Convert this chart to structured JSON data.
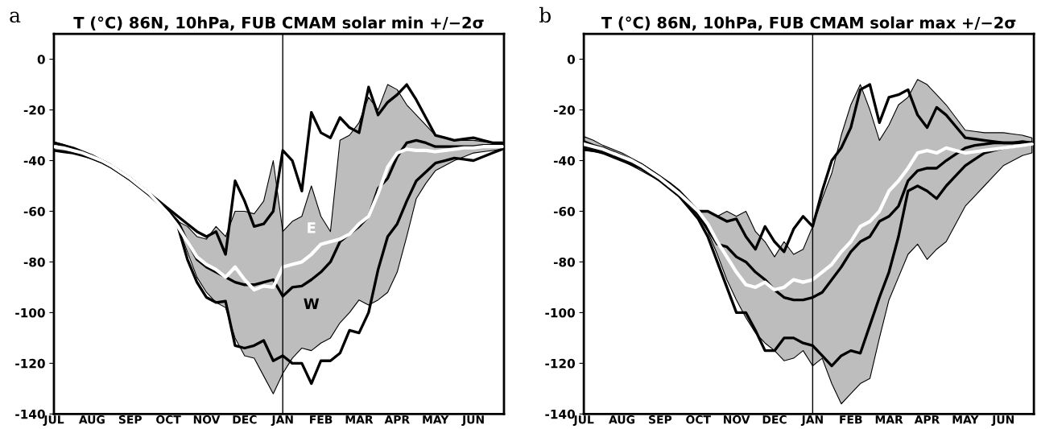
{
  "chart_data": [
    {
      "type": "line",
      "title": "T (°C) 86N, 10hPa, FUB CMAM solar min +/−2σ",
      "annotations": [
        "a"
      ],
      "categories": [
        "JUL",
        null,
        null,
        null,
        "AUG",
        null,
        null,
        null,
        "SEP",
        null,
        null,
        null,
        "OCT",
        null,
        null,
        null,
        "NOV",
        null,
        null,
        null,
        "DEC",
        null,
        null,
        null,
        "JAN",
        null,
        null,
        null,
        "FEB",
        null,
        null,
        null,
        "MAR",
        null,
        null,
        null,
        "APR",
        null,
        null,
        null,
        "MAY",
        null,
        null,
        null,
        "JUN",
        null,
        null,
        null
      ],
      "ylim": [
        -140,
        10
      ],
      "yticks": [
        -140,
        -120,
        -100,
        -80,
        -60,
        -40,
        -20,
        0
      ],
      "ref_lines": [
        {
          "axis": "x",
          "value": "JAN",
          "color": "#000000"
        }
      ],
      "series": [
        {
          "color": "#bdbdbd",
          "values": [
            null,
            null,
            null,
            null,
            null,
            null,
            null,
            null,
            null,
            null,
            null,
            null,
            null,
            null,
            null,
            null,
            null,
            null,
            null,
            null,
            null,
            null,
            null,
            null,
            null,
            null,
            null,
            null,
            null,
            null,
            null,
            null,
            null,
            null,
            null,
            null,
            null,
            null,
            null,
            null,
            null,
            null,
            null,
            null,
            null,
            null,
            null,
            null
          ],
          "lower": [
            -36,
            -36.5,
            -37,
            -38,
            -39.5,
            -41,
            -43,
            -45.5,
            -48,
            -51,
            -54,
            -57.5,
            -61,
            -66,
            -76,
            -86,
            -92,
            -96,
            -98,
            -110,
            -117,
            -118,
            -125,
            -132,
            -124,
            -118,
            -114,
            -115,
            -112,
            -110,
            -104,
            -100,
            -95,
            -97,
            -95,
            -92,
            -84,
            -70,
            -55,
            -49,
            -44,
            -42,
            -40,
            -38.5,
            -37,
            -36.5,
            -36,
            -35.5
          ],
          "upper": [
            -33,
            -34,
            -35,
            -36.5,
            -38,
            -39.5,
            -41.5,
            -44,
            -46.5,
            -49.5,
            -52.5,
            -56,
            -60,
            -64,
            -66,
            -70,
            -71,
            -66,
            -70,
            -60,
            -60,
            -61,
            -56,
            -40,
            -68,
            -64,
            -62,
            -50,
            -62,
            -68,
            -32,
            -30,
            -25,
            -15,
            -20,
            -10,
            -12,
            -18,
            -22,
            -26,
            -30,
            -31,
            -32,
            -32,
            -32,
            -32.5,
            -33,
            -33
          ]
        },
        {
          "color": "#000000",
          "values": [
            -33,
            -34,
            -35,
            -36.5,
            -38,
            -40,
            -42,
            -44.5,
            -47,
            -50,
            -53,
            -56,
            -59,
            -62,
            -65,
            -68,
            -70,
            -68,
            -77,
            -48,
            -56,
            -66,
            -65,
            -60,
            -36,
            -40,
            -52,
            -21,
            -29,
            -31,
            -23,
            -27,
            -29,
            -11,
            -22,
            -17,
            -14,
            -10,
            -16,
            -23,
            -30,
            -31,
            -32,
            -31.5,
            -31,
            -32,
            -33,
            -33
          ]
        },
        {
          "color": "#000000",
          "values": [
            -36,
            -36.5,
            -37,
            -38,
            -39,
            -40.5,
            -42.5,
            -45,
            -47.5,
            -50.5,
            -53.5,
            -57,
            -61,
            -66,
            -79,
            -88,
            -94,
            -96,
            -95.5,
            -113,
            -114,
            -113,
            -111,
            -119,
            -117,
            -120,
            -120,
            -128,
            -119,
            -119,
            -116,
            -107,
            -108,
            -100,
            -83,
            -70,
            -65,
            -56,
            -48,
            -44.5,
            -41,
            -40,
            -39,
            -39.5,
            -40,
            -38.5,
            -37,
            -35.5
          ]
        },
        {
          "name": "W",
          "color": "#000000",
          "values": [
            -33,
            -34,
            -35.5,
            -37,
            -38.5,
            -40,
            -42,
            -44.5,
            -47,
            -50,
            -53,
            -56.5,
            -60,
            -64,
            -72,
            -79,
            -82,
            -84,
            -86,
            -88,
            -89,
            -89,
            -88,
            -87,
            -93.5,
            -90,
            -89.5,
            -87,
            -84,
            -80,
            -72,
            -69,
            -66,
            -62,
            -51,
            -47,
            -38.5,
            -33,
            -32,
            -33,
            -34.5,
            -34.5,
            -34.5,
            -34.5,
            -34.5,
            -34,
            -34,
            -33.5
          ]
        },
        {
          "name": "E",
          "color": "#ffffff",
          "values": [
            -34.5,
            -35,
            -36,
            -37,
            -38.5,
            -40,
            -42,
            -44.5,
            -47,
            -50,
            -53,
            -57,
            -61,
            -66,
            -72,
            -78,
            -81,
            -83,
            -86,
            -82,
            -87,
            -91,
            -89.5,
            -90,
            -82,
            -81,
            -80,
            -77,
            -73,
            -72,
            -71,
            -69,
            -65,
            -62,
            -53,
            -42.5,
            -37,
            -35.5,
            -36,
            -36,
            -36.5,
            -36,
            -35.5,
            -35,
            -35,
            -34.5,
            -34.5,
            -34.5
          ]
        }
      ]
    },
    {
      "type": "line",
      "title": "T (°C) 86N, 10hPa, FUB CMAM solar max +/−2σ",
      "annotations": [
        "b"
      ],
      "categories": [
        "JUL",
        null,
        null,
        null,
        "AUG",
        null,
        null,
        null,
        "SEP",
        null,
        null,
        null,
        "OCT",
        null,
        null,
        null,
        "NOV",
        null,
        null,
        null,
        "DEC",
        null,
        null,
        null,
        "JAN",
        null,
        null,
        null,
        "FEB",
        null,
        null,
        null,
        "MAR",
        null,
        null,
        null,
        "APR",
        null,
        null,
        null,
        "MAY",
        null,
        null,
        null,
        "JUN",
        null,
        null,
        null
      ],
      "ylim": [
        -140,
        10
      ],
      "yticks": [
        -140,
        -120,
        -100,
        -80,
        -60,
        -40,
        -20,
        0
      ],
      "ref_lines": [
        {
          "axis": "x",
          "value": "JAN",
          "color": "#000000"
        }
      ],
      "series": [
        {
          "color": "#bdbdbd",
          "values": [
            null,
            null,
            null,
            null,
            null,
            null,
            null,
            null,
            null,
            null,
            null,
            null,
            null,
            null,
            null,
            null,
            null,
            null,
            null,
            null,
            null,
            null,
            null,
            null,
            null,
            null,
            null,
            null,
            null,
            null,
            null,
            null,
            null,
            null,
            null,
            null,
            null,
            null,
            null,
            null,
            null,
            null,
            null,
            null,
            null,
            null,
            null,
            null
          ],
          "lower": [
            -36,
            -36.5,
            -37,
            -38.5,
            -40,
            -42,
            -44,
            -46,
            -48,
            -51,
            -54,
            -58,
            -62,
            -68,
            -77,
            -87,
            -95,
            -102,
            -108,
            -112,
            -115,
            -119,
            -118,
            -115,
            -121,
            -118,
            -128,
            -136,
            -132,
            -128,
            -126,
            -110,
            -95,
            -86,
            -77,
            -73,
            -79,
            -75,
            -72,
            -65,
            -58,
            -54,
            -50,
            -46,
            -42,
            -40,
            -38,
            -37
          ],
          "upper": [
            -30.5,
            -32,
            -34,
            -35.5,
            -37,
            -39,
            -41,
            -43.5,
            -46,
            -49,
            -52,
            -56,
            -60,
            -60,
            -62,
            -60,
            -62,
            -60,
            -68,
            -72,
            -78,
            -72,
            -77,
            -75,
            -66,
            -55,
            -45,
            -30,
            -18,
            -10,
            -20,
            -32,
            -26,
            -18,
            -15,
            -8,
            -10,
            -14,
            -18,
            -23,
            -28,
            -28.5,
            -29,
            -29,
            -29,
            -29.5,
            -30,
            -31
          ]
        },
        {
          "color": "#000000",
          "values": [
            -32.5,
            -34,
            -35,
            -36.5,
            -38,
            -40,
            -41.5,
            -44,
            -46.5,
            -49,
            -52,
            -56,
            -60,
            -60,
            -62,
            -64,
            -63,
            -70,
            -75,
            -66,
            -72,
            -76,
            -67,
            -62,
            -66,
            -52,
            -40,
            -35,
            -27,
            -12,
            -10,
            -25,
            -15,
            -14,
            -12,
            -22,
            -27,
            -19,
            -22,
            -26.5,
            -31,
            -31.5,
            -32,
            -32.5,
            -33,
            -33,
            -32.5,
            -33
          ]
        },
        {
          "color": "#000000",
          "values": [
            -35.5,
            -36,
            -37,
            -38.5,
            -40,
            -41.5,
            -43,
            -45.5,
            -48,
            -51,
            -54,
            -58.5,
            -63,
            -70,
            -80,
            -90,
            -100,
            -100,
            -107,
            -115,
            -115,
            -110,
            -110,
            -112,
            -113,
            -117,
            -121,
            -117,
            -115,
            -116,
            -105,
            -94,
            -84,
            -70,
            -52,
            -50,
            -52,
            -55,
            -50,
            -46,
            -42,
            -39.5,
            -37,
            -36,
            -35,
            -34.5,
            -34,
            -33.5
          ]
        },
        {
          "color": "#000000",
          "values": [
            -34.5,
            -35,
            -36,
            -37.5,
            -39,
            -40.5,
            -42.5,
            -45,
            -47.5,
            -50.5,
            -53.5,
            -57,
            -61,
            -67,
            -73,
            -74,
            -78,
            -80,
            -84,
            -87,
            -91,
            -94,
            -95,
            -95,
            -94,
            -92,
            -87,
            -82,
            -76,
            -72,
            -70,
            -64,
            -62,
            -58,
            -48,
            -44,
            -43,
            -43,
            -40,
            -37.5,
            -35,
            -34,
            -33.5,
            -33,
            -33,
            -33,
            -33,
            -33
          ]
        },
        {
          "color": "#ffffff",
          "values": [
            -33.5,
            -34.5,
            -35.5,
            -37,
            -38.5,
            -40,
            -42,
            -44.5,
            -47,
            -50,
            -53,
            -56.5,
            -60,
            -65,
            -72,
            -78,
            -84,
            -89,
            -90,
            -88,
            -91,
            -90,
            -87,
            -88,
            -87,
            -84,
            -81,
            -76,
            -72,
            -66,
            -64,
            -60,
            -52,
            -48,
            -43,
            -37,
            -36,
            -37,
            -35,
            -36,
            -37,
            -36.5,
            -36,
            -35.5,
            -35,
            -34.5,
            -34,
            -33.5
          ]
        }
      ]
    }
  ]
}
